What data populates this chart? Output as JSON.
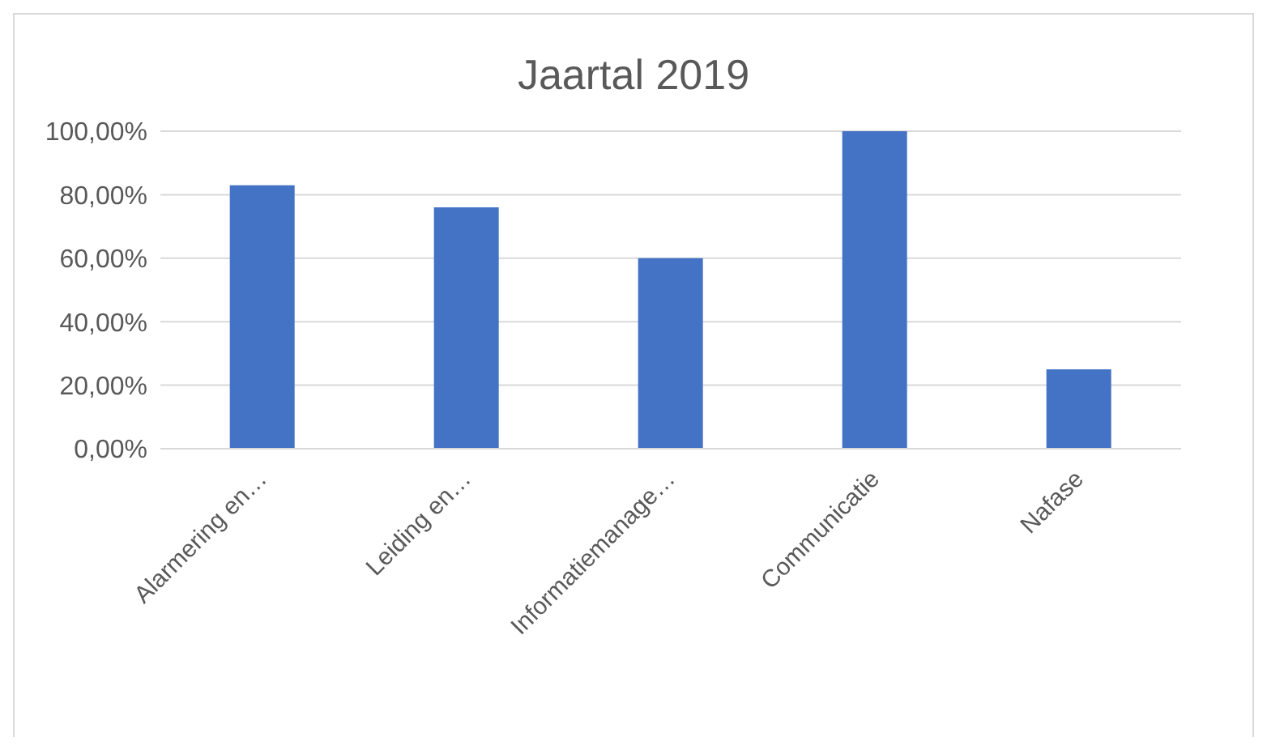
{
  "chart_data": {
    "type": "bar",
    "title": "Jaartal 2019",
    "categories": [
      "Alarmering en…",
      "Leiding en…",
      "Informatiemanage…",
      "Communicatie",
      "Nafase"
    ],
    "values": [
      83,
      76,
      60,
      100,
      25
    ],
    "color": "#4472c4",
    "ylim": [
      0,
      100
    ],
    "yticks": [
      {
        "value": 0,
        "label": "0,00%"
      },
      {
        "value": 20,
        "label": "20,00%"
      },
      {
        "value": 40,
        "label": "40,00%"
      },
      {
        "value": 60,
        "label": "60,00%"
      },
      {
        "value": 80,
        "label": "80,00%"
      },
      {
        "value": 100,
        "label": "100,00%"
      }
    ],
    "grid": "y"
  }
}
